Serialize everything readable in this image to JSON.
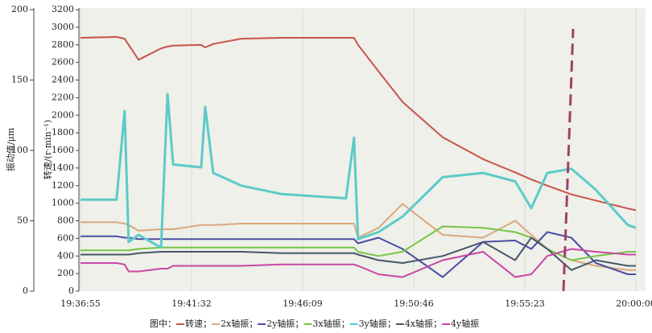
{
  "chart_data": {
    "type": "line",
    "y_label": "振动值/μm",
    "y2_label": "转速/(r·min⁻¹)",
    "legend_title": "图中：",
    "legend_separator": "；",
    "x": [
      "19:36:55",
      "19:38:25",
      "19:38:45",
      "19:38:55",
      "19:39:20",
      "19:40:16",
      "19:40:32",
      "19:40:46",
      "19:41:56",
      "19:42:06",
      "19:42:26",
      "19:43:36",
      "19:45:17",
      "19:47:57",
      "19:48:17",
      "19:48:27",
      "19:49:18",
      "19:50:18",
      "19:51:58",
      "19:53:39",
      "19:54:59",
      "19:55:39",
      "19:56:19",
      "19:57:19",
      "19:58:20",
      "19:59:40",
      "20:00:00"
    ],
    "xlim": [
      "19:36:55",
      "20:00:00"
    ],
    "xticks": [
      "19:36:55",
      "19:41:32",
      "19:46:09",
      "19:50:46",
      "19:55:23",
      "20:00:00"
    ],
    "ylim": [
      0,
      200
    ],
    "yticks": [
      0,
      50,
      100,
      150,
      200
    ],
    "y2lim": [
      0,
      3200
    ],
    "y2ticks": [
      0,
      200,
      400,
      600,
      800,
      1000,
      1200,
      1400,
      1600,
      1800,
      2000,
      2200,
      2400,
      2600,
      2800,
      3000,
      3200
    ],
    "grid": true,
    "series": [
      {
        "name": "转速",
        "color": "#c8544c",
        "axis": "y2",
        "values": [
          2880,
          2890,
          2870,
          2800,
          2630,
          2760,
          2780,
          2790,
          2800,
          2770,
          2810,
          2870,
          2880,
          2880,
          2880,
          2800,
          2500,
          2150,
          1750,
          1500,
          1350,
          1270,
          1200,
          1100,
          1030,
          940,
          920
        ]
      },
      {
        "name": "2x轴振",
        "color": "#dba77a",
        "values": [
          49,
          49,
          48,
          47,
          43,
          44,
          44,
          44,
          47,
          47,
          47,
          48,
          48,
          48,
          48,
          38,
          45,
          62,
          40,
          38,
          50,
          40,
          30,
          22,
          18,
          15,
          15
        ]
      },
      {
        "name": "2y轴振",
        "color": "#4c4ca4",
        "values": [
          39,
          39,
          38,
          38,
          37,
          37,
          37,
          37,
          37,
          37,
          37,
          37,
          37,
          37,
          37,
          34,
          38,
          30,
          10,
          35,
          36,
          30,
          42,
          38,
          20,
          12,
          12
        ]
      },
      {
        "name": "3x轴振",
        "color": "#76c646",
        "values": [
          29,
          29,
          29,
          29,
          30,
          31,
          31,
          31,
          31,
          31,
          31,
          31,
          31,
          31,
          31,
          28,
          25,
          28,
          46,
          45,
          42,
          38,
          30,
          22,
          25,
          28,
          28
        ]
      },
      {
        "name": "3y轴振",
        "color": "#5ccaca",
        "values": [
          65,
          65,
          128,
          35,
          40,
          31,
          140,
          90,
          88,
          131,
          84,
          75,
          69,
          66,
          109,
          37,
          42,
          53,
          81,
          84,
          78,
          59,
          84,
          87,
          72,
          47,
          45
        ]
      },
      {
        "name": "4x轴振",
        "color": "#46566a",
        "values": [
          26,
          26,
          26,
          26,
          27,
          28,
          28,
          28,
          28,
          28,
          28,
          28,
          27,
          27,
          27,
          26,
          22,
          20,
          25,
          35,
          22,
          38,
          30,
          15,
          22,
          18,
          18
        ]
      },
      {
        "name": "4y轴振",
        "color": "#c846a6",
        "values": [
          20,
          20,
          19,
          14,
          14,
          16,
          16,
          18,
          18,
          18,
          18,
          18,
          19,
          19,
          19,
          18,
          12,
          10,
          22,
          28,
          10,
          12,
          25,
          30,
          28,
          26,
          26
        ]
      }
    ]
  }
}
